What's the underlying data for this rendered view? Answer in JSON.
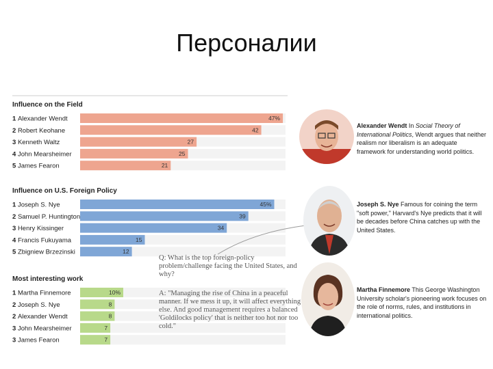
{
  "slide": {
    "title": "Персоналии"
  },
  "chart_data": [
    {
      "type": "bar",
      "orientation": "horizontal",
      "title": "Influence on the Field",
      "color": "#eea58f",
      "categories": [
        "1 Alexander Wendt",
        "2 Robert Keohane",
        "3 Kenneth Waltz",
        "4 John Mearsheimer",
        "5 James Fearon"
      ],
      "values": [
        47,
        42,
        27,
        25,
        21
      ],
      "value_labels": [
        "47%",
        "42",
        "27",
        "25",
        "21"
      ]
    },
    {
      "type": "bar",
      "orientation": "horizontal",
      "title": "Influence on U.S. Foreign Policy",
      "color": "#7fa6d6",
      "categories": [
        "1 Joseph S. Nye",
        "2 Samuel P. Huntington",
        "3 Henry Kissinger",
        "4 Francis Fukuyama",
        "5 Zbigniew Brzezinski"
      ],
      "values": [
        45,
        39,
        34,
        15,
        12
      ],
      "value_labels": [
        "45%",
        "39",
        "34",
        "15",
        "12"
      ]
    },
    {
      "type": "bar",
      "orientation": "horizontal",
      "title": "Most interesting work",
      "color": "#b8d98a",
      "categories": [
        "1 Martha Finnemore",
        "2 Joseph S. Nye",
        "2 Alexander Wendt",
        "3 John Mearsheimer",
        "3 James Fearon"
      ],
      "values": [
        10,
        8,
        8,
        7,
        7
      ],
      "value_labels": [
        "10%",
        "8",
        "8",
        "7",
        "7"
      ]
    }
  ],
  "qa": {
    "question": "Q: What is the top foreign-policy problem/challenge facing the United States, and why?",
    "answer": "A: \"Managing the rise of China in a peaceful manner. If we mess it up, it will affect everything else. And good management requires a balanced 'Goldilocks policy' that is neither too hot nor too cold.\""
  },
  "profiles": [
    {
      "name": "Alexander Wendt",
      "text_before_italic": " In ",
      "italic": "Social Theory of International Politics",
      "text_after": ", Wendt argues that neither realism nor liberalism is an adequate framework for understanding world politics."
    },
    {
      "name": "Joseph S. Nye",
      "text": " Famous for coining the term \"soft power,\" Harvard's Nye predicts that it will be decades before China catches up with the United States."
    },
    {
      "name": "Martha Finnemore",
      "text": " This George Washington University scholar's pioneering work focuses on the role of norms, rules, and institutions in international politics."
    }
  ]
}
